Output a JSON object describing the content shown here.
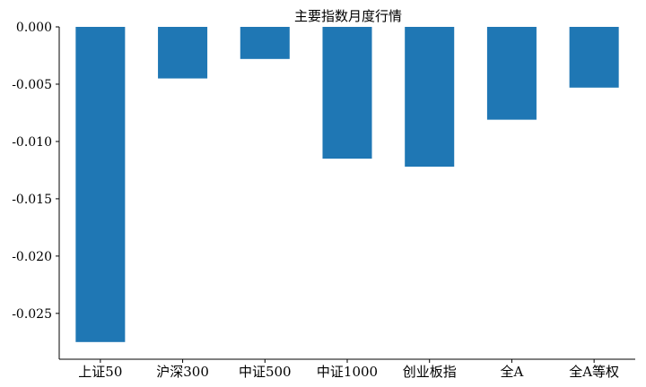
{
  "chart_data": {
    "type": "bar",
    "title": "主要指数月度行情",
    "categories": [
      "上证50",
      "沪深300",
      "中证500",
      "中证1000",
      "创业板指",
      "全A",
      "全A等权"
    ],
    "values": [
      -0.0275,
      -0.0045,
      -0.0028,
      -0.0115,
      -0.0122,
      -0.0081,
      -0.0053
    ],
    "yticks": [
      "0.000",
      "-0.005",
      "-0.010",
      "-0.015",
      "-0.020",
      "-0.025"
    ],
    "ytick_values": [
      0,
      -0.005,
      -0.01,
      -0.015,
      -0.02,
      -0.025
    ],
    "ylim": [
      -0.029,
      0.0
    ],
    "bar_color": "#1f77b4",
    "grid": false,
    "xlabel": "",
    "ylabel": ""
  }
}
